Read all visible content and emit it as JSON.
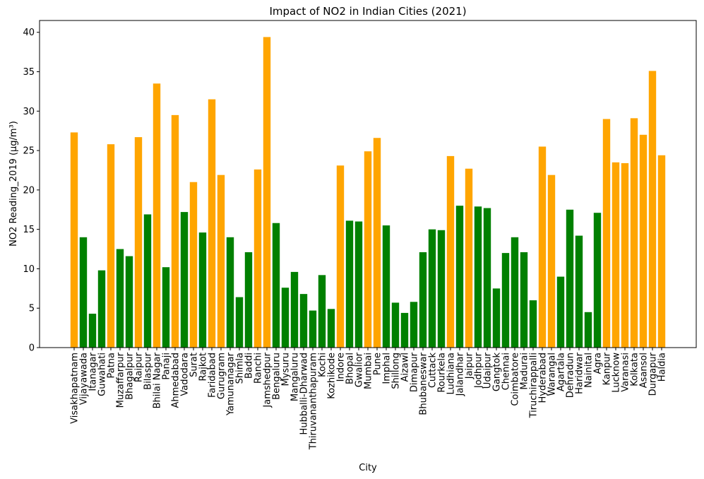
{
  "chart_data": {
    "type": "bar",
    "title": "Impact of NO2 in Indian Cities (2021)",
    "xlabel": "City",
    "ylabel": "NO2 Reading_2019 (µg/m³)",
    "ylim": [
      0,
      41.5
    ],
    "yticks": [
      0,
      5,
      10,
      15,
      20,
      25,
      30,
      35,
      40
    ],
    "grid": false,
    "colors": {
      "high": "#FFA500",
      "low": "#008000"
    },
    "categories": [
      "Visakhapatnam",
      "Vijayawada",
      "Itanagar",
      "Guwahati",
      "Patna",
      "Muzaffarpur",
      "Bhagalpur",
      "Raipur",
      "Bilaspur",
      "Bhilai Nagar",
      "Panaji",
      "Ahmedabad",
      "Vadodara",
      "Surat",
      "Rajkot",
      "Faridabad",
      "Gurugram",
      "Yamunanagar",
      "Shimla",
      "Baddi",
      "Ranchi",
      "Jamshedpur",
      "Bengaluru",
      "Mysuru",
      "Mangaluru",
      "Hubballi-Dharwad",
      "Thiruvananthapuram",
      "Kochi",
      "Kozhikode",
      "Indore",
      "Bhopal",
      "Gwalior",
      "Mumbai",
      "Pune",
      "Imphal",
      "Shillong",
      "Aizawl",
      "Dimapur",
      "Bhubaneswar",
      "Cuttack",
      "Rourkela",
      "Ludhiana",
      "Jalandhar",
      "Jaipur",
      "Jodhpur",
      "Udaipur",
      "Gangtok",
      "Chennai",
      "Coimbatore",
      "Madurai",
      "Tiruchirappalli",
      "Hyderabad",
      "Warangal",
      "Agartala",
      "Dehradun",
      "Haridwar",
      "Nainital",
      "Agra",
      "Kanpur",
      "Lucknow",
      "Varanasi",
      "Kolkata",
      "Asansol",
      "Durgapur",
      "Haldia"
    ],
    "values": [
      27.3,
      14.0,
      4.3,
      9.8,
      25.8,
      12.5,
      11.6,
      26.7,
      16.9,
      33.5,
      10.2,
      29.5,
      17.2,
      21.0,
      14.6,
      31.5,
      21.9,
      14.0,
      6.4,
      12.1,
      22.6,
      39.4,
      15.8,
      7.6,
      9.6,
      6.8,
      4.7,
      9.2,
      4.9,
      23.1,
      16.1,
      16.0,
      24.9,
      26.6,
      15.5,
      5.7,
      4.4,
      5.8,
      12.1,
      15.0,
      14.9,
      24.3,
      18.0,
      22.7,
      17.9,
      17.7,
      7.5,
      12.0,
      14.0,
      12.1,
      6.0,
      25.5,
      21.9,
      9.0,
      17.5,
      14.2,
      4.5,
      17.1,
      29.0,
      23.5,
      23.4,
      29.1,
      27.0,
      35.1,
      24.4
    ],
    "bar_colors": [
      "high",
      "low",
      "low",
      "low",
      "high",
      "low",
      "low",
      "high",
      "low",
      "high",
      "low",
      "high",
      "low",
      "high",
      "low",
      "high",
      "high",
      "low",
      "low",
      "low",
      "high",
      "high",
      "low",
      "low",
      "low",
      "low",
      "low",
      "low",
      "low",
      "high",
      "low",
      "low",
      "high",
      "high",
      "low",
      "low",
      "low",
      "low",
      "low",
      "low",
      "low",
      "high",
      "low",
      "high",
      "low",
      "low",
      "low",
      "low",
      "low",
      "low",
      "low",
      "high",
      "high",
      "low",
      "low",
      "low",
      "low",
      "low",
      "high",
      "high",
      "high",
      "high",
      "high",
      "high",
      "high"
    ]
  }
}
